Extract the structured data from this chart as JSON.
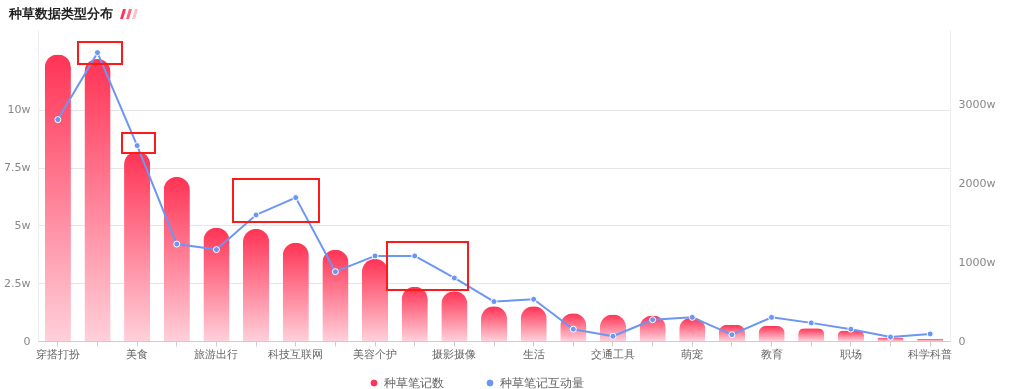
{
  "chart_data": {
    "type": "bar",
    "title": "种草数据类型分布",
    "categories": [
      "穿搭打扮",
      null,
      "美食",
      null,
      "旅游出行",
      null,
      "科技互联网",
      null,
      "美容个护",
      null,
      "摄影摄像",
      null,
      "生活",
      null,
      "交通工具",
      null,
      "萌宠",
      null,
      "教育",
      null,
      "职场",
      null,
      "科学科普"
    ],
    "series": [
      {
        "name": "种草笔记数",
        "color": "#ff3355",
        "values": [
          12.4,
          12.2,
          8.2,
          7.1,
          4.9,
          4.85,
          4.25,
          3.95,
          3.55,
          2.35,
          2.15,
          1.5,
          1.5,
          1.2,
          1.15,
          1.1,
          1.0,
          0.7,
          0.65,
          0.55,
          0.45,
          0.15,
          0.1
        ]
      },
      {
        "name": "种草笔记互动量",
        "type": "line",
        "axis": "y2",
        "color": "#6b96f4",
        "values": [
          2810,
          3660,
          2480,
          1230,
          1160,
          1600,
          1820,
          880,
          1080,
          1080,
          800,
          500,
          530,
          150,
          60,
          270,
          300,
          80,
          300,
          230,
          150,
          50,
          90
        ]
      }
    ],
    "ylim": [
      0,
      13.5
    ],
    "yticks": [
      0,
      {
        "value": 2.5,
        "label": "2.5w"
      },
      {
        "value": 5,
        "label": "5w"
      },
      {
        "value": 7.5,
        "label": "7.5w"
      },
      {
        "value": 10,
        "label": "10w"
      }
    ],
    "y2lim": [
      0,
      3960
    ],
    "y2ticks": [
      0,
      {
        "value": 1000,
        "label": "1000w"
      },
      {
        "value": 2000,
        "label": "2000w"
      },
      {
        "value": 3000,
        "label": "3000w"
      }
    ],
    "grid": "y",
    "legend": "bottom",
    "marker": "circle",
    "line_style": "solid"
  }
}
